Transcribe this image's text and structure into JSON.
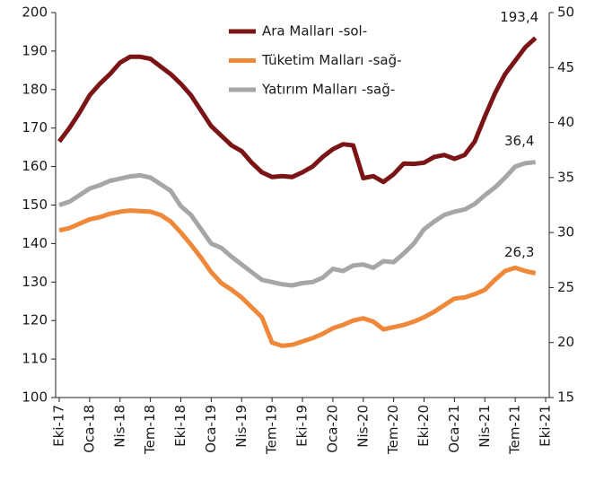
{
  "chart_data": {
    "type": "line",
    "categories": [
      "Eki-17",
      null,
      null,
      "Oca-18",
      null,
      null,
      "Nis-18",
      null,
      null,
      "Tem-18",
      null,
      null,
      "Eki-18",
      null,
      null,
      "Oca-19",
      null,
      null,
      "Nis-19",
      null,
      null,
      "Tem-19",
      null,
      null,
      "Eki-19",
      null,
      null,
      "Oca-20",
      null,
      null,
      "Nis-20",
      null,
      null,
      "Tem-20",
      null,
      null,
      "Eki-20",
      null,
      null,
      "Oca-21",
      null,
      null,
      "Nis-21",
      null,
      null,
      "Tem-21",
      null,
      null,
      "Eki-21"
    ],
    "series": [
      {
        "name": "Ara Malları -sol-",
        "color": "#7b1416",
        "axis": "y",
        "values": [
          166.5,
          170,
          174,
          178.5,
          181.5,
          184,
          187,
          188.5,
          188.5,
          188,
          186,
          184,
          181.5,
          178.5,
          174.5,
          170.5,
          168,
          165.5,
          164,
          161,
          158.5,
          157.3,
          157.5,
          157.3,
          158.5,
          160,
          162.5,
          164.5,
          165.8,
          165.5,
          157,
          157.5,
          156,
          158,
          160.8,
          160.7,
          161,
          162.5,
          163,
          162,
          163,
          166.5,
          173,
          179,
          184,
          187.5,
          191,
          193.4,
          null
        ],
        "value_labels": [
          null,
          null,
          null,
          null,
          null,
          null,
          null,
          null,
          null,
          null,
          null,
          null,
          null,
          null,
          null,
          null,
          null,
          null,
          null,
          null,
          null,
          null,
          null,
          null,
          null,
          null,
          null,
          null,
          null,
          null,
          null,
          null,
          null,
          null,
          null,
          null,
          null,
          null,
          null,
          null,
          null,
          null,
          null,
          null,
          null,
          null,
          null,
          "193,4",
          null
        ]
      },
      {
        "name": "Tüketim Malları -sağ-",
        "color": "#f0883a",
        "axis": "y2",
        "values": [
          30.2,
          30.4,
          30.8,
          31.2,
          31.4,
          31.7,
          31.9,
          32.0,
          31.95,
          31.9,
          31.6,
          31.0,
          30.0,
          28.9,
          27.7,
          26.4,
          25.4,
          24.8,
          24.1,
          23.2,
          22.3,
          20.0,
          19.7,
          19.8,
          20.1,
          20.4,
          20.8,
          21.3,
          21.6,
          22.0,
          22.2,
          21.9,
          21.2,
          21.4,
          21.6,
          21.9,
          22.3,
          22.8,
          23.4,
          24.0,
          24.1,
          24.4,
          24.8,
          25.7,
          26.5,
          26.8,
          26.5,
          26.3,
          null
        ],
        "value_labels": [
          null,
          null,
          null,
          null,
          null,
          null,
          null,
          null,
          null,
          null,
          null,
          null,
          null,
          null,
          null,
          null,
          null,
          null,
          null,
          null,
          null,
          null,
          null,
          null,
          null,
          null,
          null,
          null,
          null,
          null,
          null,
          null,
          null,
          null,
          null,
          null,
          null,
          null,
          null,
          null,
          null,
          null,
          null,
          null,
          null,
          null,
          null,
          "26,3",
          null
        ]
      },
      {
        "name": "Yatırım Malları -sağ-",
        "color": "#a6a6a6",
        "axis": "y2",
        "values": [
          32.5,
          32.8,
          33.4,
          34.0,
          34.3,
          34.7,
          34.9,
          35.1,
          35.2,
          35.0,
          34.4,
          33.8,
          32.4,
          31.6,
          30.3,
          29.0,
          28.6,
          27.8,
          27.1,
          26.4,
          25.7,
          25.5,
          25.3,
          25.2,
          25.4,
          25.5,
          25.9,
          26.7,
          26.5,
          27.0,
          27.1,
          26.8,
          27.4,
          27.3,
          28.1,
          29.0,
          30.3,
          31.0,
          31.6,
          31.9,
          32.1,
          32.6,
          33.4,
          34.1,
          35.0,
          36.0,
          36.3,
          36.4,
          null
        ],
        "value_labels": [
          null,
          null,
          null,
          null,
          null,
          null,
          null,
          null,
          null,
          null,
          null,
          null,
          null,
          null,
          null,
          null,
          null,
          null,
          null,
          null,
          null,
          null,
          null,
          null,
          null,
          null,
          null,
          null,
          null,
          null,
          null,
          null,
          null,
          null,
          null,
          null,
          null,
          null,
          null,
          null,
          null,
          null,
          null,
          null,
          null,
          null,
          null,
          "36,4",
          null
        ]
      }
    ],
    "ylim": [
      100,
      200
    ],
    "yticks": [
      100,
      110,
      120,
      130,
      140,
      150,
      160,
      170,
      180,
      190,
      200
    ],
    "y2lim": [
      15,
      50
    ],
    "y2ticks": [
      15,
      20,
      25,
      30,
      35,
      40,
      45,
      50
    ],
    "legend": "top"
  }
}
